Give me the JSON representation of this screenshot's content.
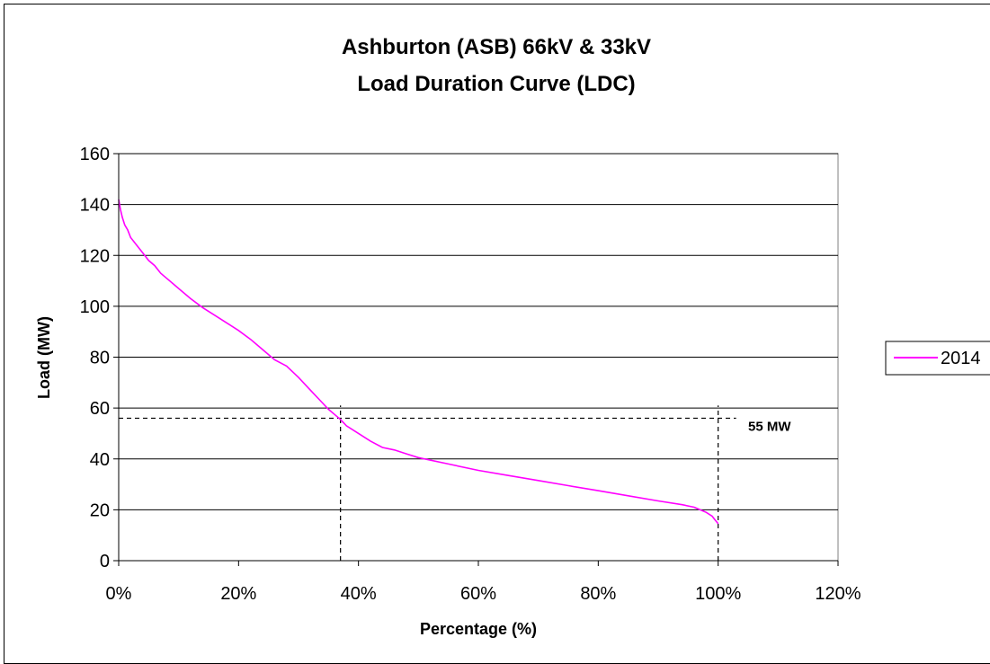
{
  "chart_data": {
    "type": "line",
    "title_lines": [
      "Ashburton (ASB) 66kV & 33kV",
      "Load Duration Curve (LDC)"
    ],
    "xlabel": "Percentage (%)",
    "ylabel": "Load (MW)",
    "xlim": [
      0,
      120
    ],
    "ylim": [
      0,
      160
    ],
    "x_ticks": [
      0,
      20,
      40,
      60,
      80,
      100,
      120
    ],
    "x_tick_labels": [
      "0%",
      "20%",
      "40%",
      "60%",
      "80%",
      "100%",
      "120%"
    ],
    "y_ticks": [
      0,
      20,
      40,
      60,
      80,
      100,
      120,
      140,
      160
    ],
    "y_tick_labels": [
      "0",
      "20",
      "40",
      "60",
      "80",
      "100",
      "120",
      "140",
      "160"
    ],
    "grid": "horizontal",
    "legend_position": "right",
    "series": [
      {
        "name": "2014",
        "color": "#ff00ff",
        "x": [
          0,
          0.3,
          0.6,
          1,
          1.5,
          2,
          3,
          4,
          5,
          6,
          7,
          8,
          9,
          10,
          12,
          14,
          16,
          18,
          20,
          22,
          24,
          26,
          28,
          30,
          32,
          34,
          35,
          36,
          37,
          38,
          40,
          42,
          44,
          46,
          48,
          50,
          55,
          60,
          65,
          70,
          75,
          80,
          85,
          90,
          94,
          96,
          97,
          98,
          99,
          99.5,
          100
        ],
        "y": [
          142,
          138,
          135,
          132,
          130,
          127,
          124,
          121,
          118,
          116,
          113,
          111,
          109,
          107,
          103,
          99.5,
          96.5,
          93.5,
          90.5,
          87,
          83,
          79,
          76.5,
          72,
          67,
          62,
          59.5,
          57.5,
          55.5,
          53,
          50,
          47,
          44.5,
          43.5,
          42,
          40.5,
          38,
          35.5,
          33.5,
          31.5,
          29.5,
          27.5,
          25.5,
          23.5,
          22,
          21,
          20,
          19,
          17.5,
          16,
          14.5
        ]
      }
    ],
    "reference_lines": [
      {
        "axis": "y",
        "value": 56,
        "x_range": [
          0,
          103
        ]
      },
      {
        "axis": "x",
        "value": 37,
        "y_range": [
          0,
          61
        ]
      },
      {
        "axis": "x",
        "value": 100,
        "y_range": [
          0,
          61
        ]
      }
    ],
    "annotation": {
      "text": "55 MW",
      "x": 105,
      "y": 56
    }
  }
}
